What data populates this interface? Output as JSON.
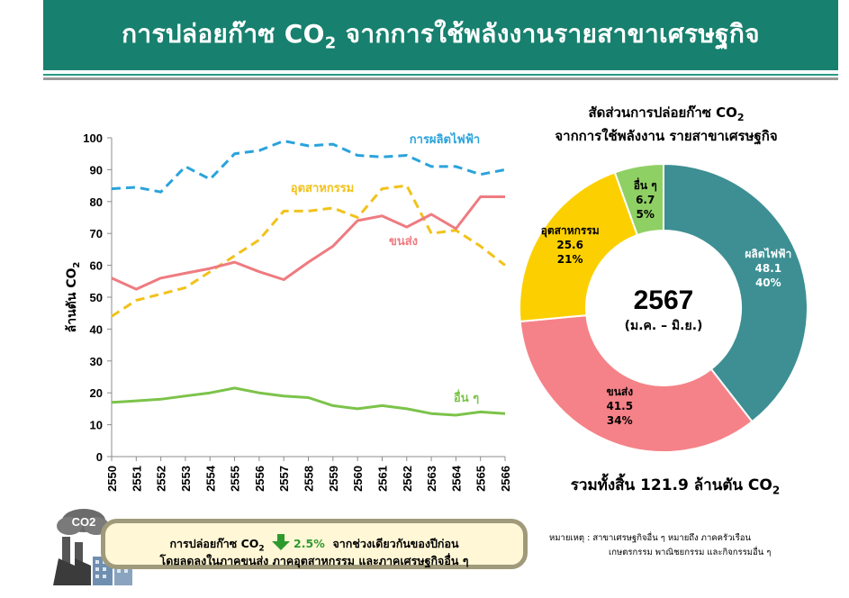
{
  "header": {
    "title_before": "การปล่อยก๊าซ CO",
    "title_sub": "2",
    "title_after": " จากการใช้พลังงานรายสาขาเศรษฐกิจ"
  },
  "line_chart": {
    "ylabel": "ล้านตัน CO2",
    "ylim": [
      0,
      100
    ],
    "yticks": [
      "0",
      "10",
      "20",
      "30",
      "40",
      "50",
      "60",
      "70",
      "80",
      "90",
      "100"
    ]
  },
  "donut": {
    "title_line1_before": "สัดส่วนการปล่อยก๊าซ CO",
    "title_line1_sub": "2",
    "title_line2": "จากการใช้พลังงาน รายสาขาเศรษฐกิจ",
    "center_year": "2567",
    "center_period": "(ม.ค. – มิ.ย.)"
  },
  "total": {
    "text_before": "รวมทั้งสิ้น 121.9 ล้านตัน CO",
    "text_sub": "2"
  },
  "note": {
    "line1_before": "การปล่อยก๊าซ CO",
    "line1_sub": "2",
    "line1_pct": "2.5%",
    "line1_after": "จากช่วงเดียวกันของปีก่อน",
    "line2": "โดยลดลงในภาคขนส่ง ภาคอุตสาหกรรม และภาคเศรษฐกิจอื่น ๆ"
  },
  "icon": {
    "name": "factory-co2-icon",
    "label": "CO2"
  },
  "remark": {
    "line1": "หมายเหตุ :  สาขาเศรษฐกิจอื่น ๆ หมายถึง ภาคครัวเรือน",
    "line2": "เกษตรกรรม พาณิชยกรรม และกิจกรรมอื่น ๆ"
  },
  "colors": {
    "header": "#17806e",
    "power": "#2aa3dc",
    "industry": "#f2c21a",
    "transport": "#ee7b80",
    "others": "#7cc34a",
    "donut_power": "#3d8f93",
    "donut_transport": "#f58288",
    "donut_industry": "#fcd000",
    "donut_others": "#8fd064"
  },
  "chart_data": [
    {
      "type": "line",
      "x": [
        "2550",
        "2551",
        "2552",
        "2553",
        "2554",
        "2555",
        "2556",
        "2557",
        "2558",
        "2559",
        "2560",
        "2561",
        "2562",
        "2563",
        "2564",
        "2565",
        "2566"
      ],
      "ylabel": "ล้านตัน CO2",
      "ylim": [
        0,
        100
      ],
      "grid": false,
      "series": [
        {
          "name": "การผลิตไฟฟ้า",
          "color": "#2aa3dc",
          "dashed": true,
          "values": [
            84,
            84.5,
            83,
            91,
            87,
            95,
            96,
            99,
            97.5,
            98,
            94.5,
            94,
            94.5,
            91,
            91,
            88.5,
            90
          ]
        },
        {
          "name": "อุตสาหกรรม",
          "color": "#f2c21a",
          "dashed": true,
          "values": [
            44,
            49,
            51,
            53,
            58,
            63,
            68,
            77,
            77,
            78,
            75,
            84,
            85,
            70,
            71,
            66,
            60
          ]
        },
        {
          "name": "ขนส่ง",
          "color": "#ee7b80",
          "dashed": false,
          "values": [
            56,
            52.5,
            56,
            57.5,
            59,
            61,
            58,
            55.5,
            61,
            66,
            74,
            75.5,
            72,
            76,
            71.5,
            81.5,
            81.5
          ]
        },
        {
          "name": "อื่น ๆ",
          "color": "#7cc34a",
          "dashed": false,
          "values": [
            17,
            17.5,
            18,
            19,
            20,
            21.5,
            20,
            19,
            18.5,
            16,
            15,
            16,
            15,
            13.5,
            13,
            14,
            13.5
          ]
        }
      ]
    },
    {
      "type": "pie",
      "title": "สัดส่วนการปล่อยก๊าซ CO2 จากการใช้พลังงาน รายสาขาเศรษฐกิจ",
      "center_label": "2567 (ม.ค. – มิ.ย.)",
      "slices": [
        {
          "name": "ผลิตไฟฟ้า",
          "value": 48.1,
          "percent": "40%",
          "value_label": "48.1",
          "color": "#3d8f93",
          "text_color": "#ffffff"
        },
        {
          "name": "ขนส่ง",
          "value": 41.5,
          "percent": "34%",
          "value_label": "41.5",
          "color": "#f58288",
          "text_color": "#000000"
        },
        {
          "name": "อุตสาหกรรม",
          "value": 25.6,
          "percent": "21%",
          "value_label": "25.6",
          "color": "#fcd000",
          "text_color": "#000000"
        },
        {
          "name": "อื่น ๆ",
          "value": 6.7,
          "percent": "5%",
          "value_label": "6.7",
          "color": "#8fd064",
          "text_color": "#000000"
        }
      ]
    }
  ]
}
